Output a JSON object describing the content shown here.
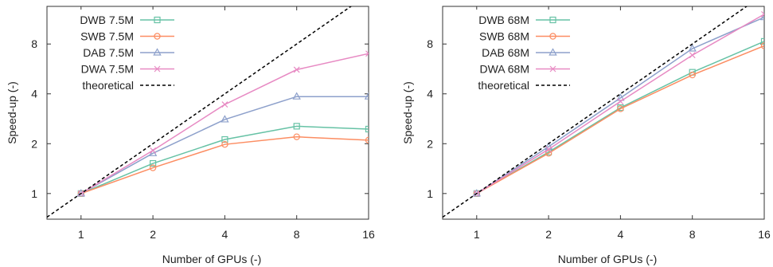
{
  "chart_data": [
    {
      "type": "line",
      "xlabel": "Number of GPUs (-)",
      "ylabel": "Speed-up (-)",
      "x_scale": "log2",
      "y_scale": "log2",
      "x": [
        1,
        2,
        4,
        8,
        16
      ],
      "xlim": [
        0.72,
        16
      ],
      "ylim": [
        0.7,
        13.5
      ],
      "xticks": [
        1,
        2,
        4,
        8,
        16
      ],
      "yticks": [
        1,
        2,
        4,
        8
      ],
      "grid": false,
      "legend": "top-left",
      "series": [
        {
          "name": "DWB 7.5M",
          "color": "#66c2a5",
          "marker": "square",
          "values": [
            1,
            1.52,
            2.12,
            2.55,
            2.45
          ]
        },
        {
          "name": "SWB 7.5M",
          "color": "#fc8d62",
          "marker": "circle",
          "values": [
            1,
            1.43,
            1.98,
            2.2,
            2.1
          ]
        },
        {
          "name": "DAB 7.5M",
          "color": "#8da0cb",
          "marker": "triangle",
          "values": [
            1,
            1.75,
            2.8,
            3.85,
            3.85
          ]
        },
        {
          "name": "DWA 7.5M",
          "color": "#e78ac3",
          "marker": "x",
          "values": [
            1,
            1.82,
            3.45,
            5.6,
            7.0
          ]
        },
        {
          "name": "theoretical",
          "color": "#000000",
          "style": "dashed",
          "values": [
            1,
            2,
            4,
            8,
            16
          ]
        }
      ]
    },
    {
      "type": "line",
      "xlabel": "Number of GPUs (-)",
      "ylabel": "Speed-up (-)",
      "x_scale": "log2",
      "y_scale": "log2",
      "x": [
        1,
        2,
        4,
        8,
        16
      ],
      "xlim": [
        0.72,
        16
      ],
      "ylim": [
        0.7,
        13.5
      ],
      "xticks": [
        1,
        2,
        4,
        8,
        16
      ],
      "yticks": [
        1,
        2,
        4,
        8
      ],
      "grid": false,
      "legend": "top-left",
      "series": [
        {
          "name": "DWB 68M",
          "color": "#66c2a5",
          "marker": "square",
          "values": [
            1,
            1.78,
            3.3,
            5.4,
            8.3
          ]
        },
        {
          "name": "SWB 68M",
          "color": "#fc8d62",
          "marker": "circle",
          "values": [
            1,
            1.75,
            3.25,
            5.2,
            7.8
          ]
        },
        {
          "name": "DAB 68M",
          "color": "#8da0cb",
          "marker": "triangle",
          "values": [
            1,
            1.92,
            3.78,
            7.5,
            11.6
          ]
        },
        {
          "name": "DWA 68M",
          "color": "#e78ac3",
          "marker": "x",
          "values": [
            1,
            1.85,
            3.6,
            6.85,
            12.1
          ]
        },
        {
          "name": "theoretical",
          "color": "#000000",
          "style": "dashed",
          "values": [
            1,
            2,
            4,
            8,
            16
          ]
        }
      ]
    }
  ]
}
